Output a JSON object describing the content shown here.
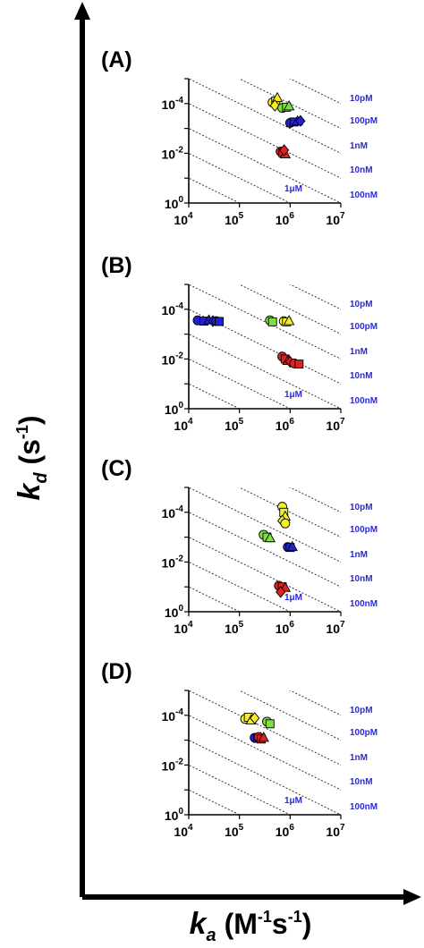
{
  "figure": {
    "y_title": {
      "main": "k",
      "sub": "d",
      "unit_open": " (s",
      "unit_sup": "-1",
      "unit_close": ")"
    },
    "x_title": {
      "main": "k",
      "sub": "a",
      "unit_open": " (M",
      "unit_sup1": "-1",
      "unit_mid": "s",
      "unit_sup2": "-1",
      "unit_close": ")"
    },
    "marker_colors": {
      "yellow": "#f7ee2a",
      "green": "#7ee043",
      "blue": "#2222cc",
      "red": "#dd2222"
    },
    "iso_label_color": "#2a2ad8"
  },
  "chart_data": [
    {
      "type": "scatter",
      "panel_label": "(A)",
      "xscale": "log",
      "yscale": "log",
      "y_inverted": true,
      "xlim": [
        10000,
        10000000
      ],
      "ylim": [
        1,
        1e-05
      ],
      "x_ticks": [
        {
          "value": 10000,
          "base": "10",
          "exp": "4"
        },
        {
          "value": 100000,
          "base": "10",
          "exp": "5"
        },
        {
          "value": 1000000,
          "base": "10",
          "exp": "6"
        },
        {
          "value": 10000000,
          "base": "10",
          "exp": "7"
        }
      ],
      "y_ticks": [
        {
          "value": 0.0001,
          "base": "10",
          "exp": "-4"
        },
        {
          "value": 0.01,
          "base": "10",
          "exp": "-2"
        },
        {
          "value": 1,
          "base": "10",
          "exp": "0"
        }
      ],
      "isoaffinity_labels": [
        "10pM",
        "100pM",
        "1nM",
        "10nM",
        "100nM",
        "1μM"
      ],
      "series": [
        {
          "color": "yellow",
          "points": [
            [
              450000,
              9e-05
            ],
            [
              520000,
              8e-05
            ],
            [
              560000,
              6e-05
            ],
            [
              500000,
              0.00012
            ]
          ]
        },
        {
          "color": "green",
          "points": [
            [
              700000,
              0.00015
            ],
            [
              850000,
              0.00014
            ],
            [
              950000,
              0.00013
            ]
          ]
        },
        {
          "color": "blue",
          "points": [
            [
              1000000,
              0.0006
            ],
            [
              1200000,
              0.00055
            ],
            [
              1400000,
              0.00052
            ],
            [
              1600000,
              0.0005
            ]
          ]
        },
        {
          "color": "red",
          "points": [
            [
              650000,
              0.0085
            ],
            [
              720000,
              0.0095
            ],
            [
              800000,
              0.011
            ],
            [
              760000,
              0.0075
            ]
          ]
        }
      ]
    },
    {
      "type": "scatter",
      "panel_label": "(B)",
      "xscale": "log",
      "yscale": "log",
      "y_inverted": true,
      "xlim": [
        10000,
        10000000
      ],
      "ylim": [
        1,
        1e-05
      ],
      "x_ticks": [
        {
          "value": 10000,
          "base": "10",
          "exp": "4"
        },
        {
          "value": 100000,
          "base": "10",
          "exp": "5"
        },
        {
          "value": 1000000,
          "base": "10",
          "exp": "6"
        },
        {
          "value": 10000000,
          "base": "10",
          "exp": "7"
        }
      ],
      "y_ticks": [
        {
          "value": 0.0001,
          "base": "10",
          "exp": "-4"
        },
        {
          "value": 0.01,
          "base": "10",
          "exp": "-2"
        },
        {
          "value": 1,
          "base": "10",
          "exp": "0"
        }
      ],
      "isoaffinity_labels": [
        "10pM",
        "100pM",
        "1nM",
        "10nM",
        "100nM",
        "1μM"
      ],
      "series": [
        {
          "color": "blue",
          "points": [
            [
              15000,
              0.00028
            ],
            [
              20000,
              0.0003
            ],
            [
              25000,
              0.00028
            ],
            [
              30000,
              0.0003
            ],
            [
              35000,
              0.0003
            ],
            [
              40000,
              0.00031
            ]
          ]
        },
        {
          "color": "green",
          "points": [
            [
              400000,
              0.00028
            ],
            [
              450000,
              0.00032
            ]
          ]
        },
        {
          "color": "yellow",
          "points": [
            [
              750000,
              0.0003
            ],
            [
              850000,
              0.00032
            ],
            [
              950000,
              0.0003
            ]
          ]
        },
        {
          "color": "red",
          "points": [
            [
              700000,
              0.008
            ],
            [
              800000,
              0.01
            ],
            [
              900000,
              0.012
            ],
            [
              1000000,
              0.013
            ],
            [
              1200000,
              0.015
            ],
            [
              1500000,
              0.016
            ]
          ]
        }
      ]
    },
    {
      "type": "scatter",
      "panel_label": "(C)",
      "xscale": "log",
      "yscale": "log",
      "y_inverted": true,
      "xlim": [
        10000,
        10000000
      ],
      "ylim": [
        1,
        1e-05
      ],
      "x_ticks": [
        {
          "value": 10000,
          "base": "10",
          "exp": "4"
        },
        {
          "value": 100000,
          "base": "10",
          "exp": "5"
        },
        {
          "value": 1000000,
          "base": "10",
          "exp": "6"
        },
        {
          "value": 10000000,
          "base": "10",
          "exp": "7"
        }
      ],
      "y_ticks": [
        {
          "value": 0.0001,
          "base": "10",
          "exp": "-4"
        },
        {
          "value": 0.01,
          "base": "10",
          "exp": "-2"
        },
        {
          "value": 1,
          "base": "10",
          "exp": "0"
        }
      ],
      "isoaffinity_labels": [
        "10pM",
        "100pM",
        "1nM",
        "10nM",
        "100nM",
        "1μM"
      ],
      "series": [
        {
          "color": "yellow",
          "points": [
            [
              700000,
              6e-05
            ],
            [
              750000,
              0.0001
            ],
            [
              800000,
              0.00015
            ],
            [
              700000,
              0.00022
            ],
            [
              800000,
              0.00028
            ]
          ]
        },
        {
          "color": "green",
          "points": [
            [
              300000,
              0.0008
            ],
            [
              350000,
              0.001
            ],
            [
              400000,
              0.0011
            ]
          ]
        },
        {
          "color": "blue",
          "points": [
            [
              900000,
              0.0025
            ],
            [
              1000000,
              0.0026
            ],
            [
              1100000,
              0.0025
            ]
          ]
        },
        {
          "color": "red",
          "points": [
            [
              600000,
              0.09
            ],
            [
              700000,
              0.1
            ],
            [
              800000,
              0.11
            ],
            [
              650000,
              0.16
            ]
          ]
        }
      ]
    },
    {
      "type": "scatter",
      "panel_label": "(D)",
      "xscale": "log",
      "yscale": "log",
      "y_inverted": true,
      "xlim": [
        10000,
        10000000
      ],
      "ylim": [
        1,
        1e-05
      ],
      "x_ticks": [
        {
          "value": 10000,
          "base": "10",
          "exp": "4"
        },
        {
          "value": 100000,
          "base": "10",
          "exp": "5"
        },
        {
          "value": 1000000,
          "base": "10",
          "exp": "6"
        },
        {
          "value": 10000000,
          "base": "10",
          "exp": "7"
        }
      ],
      "y_ticks": [
        {
          "value": 0.0001,
          "base": "10",
          "exp": "-4"
        },
        {
          "value": 0.01,
          "base": "10",
          "exp": "-2"
        },
        {
          "value": 1,
          "base": "10",
          "exp": "0"
        }
      ],
      "isoaffinity_labels": [
        "10pM",
        "100pM",
        "1nM",
        "10nM",
        "100nM",
        "1μM"
      ],
      "series": [
        {
          "color": "yellow",
          "points": [
            [
              130000,
              0.00014
            ],
            [
              150000,
              0.00012
            ],
            [
              170000,
              0.00016
            ],
            [
              200000,
              0.00013
            ]
          ]
        },
        {
          "color": "green",
          "points": [
            [
              350000,
              0.00018
            ],
            [
              400000,
              0.00022
            ]
          ]
        },
        {
          "color": "blue",
          "points": [
            [
              200000,
              0.0008
            ],
            [
              230000,
              0.00085
            ],
            [
              260000,
              0.0008
            ]
          ]
        },
        {
          "color": "red",
          "points": [
            [
              240000,
              0.00075
            ],
            [
              270000,
              0.0009
            ],
            [
              300000,
              0.0008
            ]
          ]
        }
      ]
    }
  ]
}
